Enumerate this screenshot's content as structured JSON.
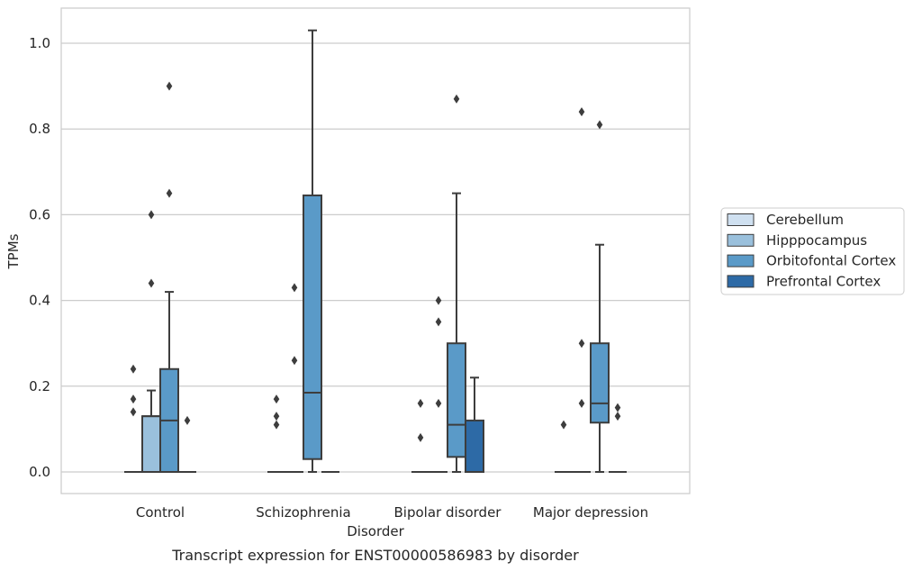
{
  "chart_data": {
    "type": "box",
    "caption": "Transcript expression for ENST00000586983 by disorder",
    "xlabel": "Disorder",
    "ylabel": "TPMs",
    "ylim": [
      -0.05,
      1.08
    ],
    "yticks": [
      "0.0",
      "0.2",
      "0.4",
      "0.6",
      "0.8",
      "1.0"
    ],
    "grid": true,
    "legend_position": "right",
    "categories": [
      "Control",
      "Schizophrenia",
      "Bipolar disorder",
      "Major depression"
    ],
    "series": [
      {
        "name": "Cerebellum",
        "color": "#cfe0f0",
        "boxes": [
          {
            "min": 0,
            "q1": 0,
            "median": 0,
            "q3": 0,
            "max": 0,
            "fliers": [
              0.14,
              0.17,
              0.24
            ]
          },
          {
            "min": 0,
            "q1": 0,
            "median": 0,
            "q3": 0,
            "max": 0,
            "fliers": [
              0.11,
              0.13,
              0.17
            ]
          },
          {
            "min": 0,
            "q1": 0,
            "median": 0,
            "q3": 0,
            "max": 0,
            "fliers": [
              0.08,
              0.16
            ]
          },
          {
            "min": 0,
            "q1": 0,
            "median": 0,
            "q3": 0,
            "max": 0,
            "fliers": [
              0.11
            ]
          }
        ]
      },
      {
        "name": "Hipppocampus",
        "color": "#9ac0dc",
        "boxes": [
          {
            "min": 0,
            "q1": 0,
            "median": 0.13,
            "q3": 0.13,
            "max": 0.19,
            "fliers": [
              0.44,
              0.6
            ]
          },
          {
            "min": 0,
            "q1": 0,
            "median": 0,
            "q3": 0,
            "max": 0,
            "fliers": [
              0.26,
              0.43
            ]
          },
          {
            "min": 0,
            "q1": 0,
            "median": 0,
            "q3": 0,
            "max": 0,
            "fliers": [
              0.16,
              0.35,
              0.4
            ]
          },
          {
            "min": 0,
            "q1": 0,
            "median": 0,
            "q3": 0,
            "max": 0,
            "fliers": [
              0.16,
              0.3,
              0.84
            ]
          }
        ]
      },
      {
        "name": "Orbitofontal Cortex",
        "color": "#5a9ac8",
        "boxes": [
          {
            "min": 0,
            "q1": 0,
            "median": 0.12,
            "q3": 0.24,
            "max": 0.42,
            "fliers": [
              0.65,
              0.9
            ]
          },
          {
            "min": 0,
            "q1": 0.03,
            "median": 0.185,
            "q3": 0.645,
            "max": 1.03,
            "fliers": []
          },
          {
            "min": 0,
            "q1": 0.035,
            "median": 0.11,
            "q3": 0.3,
            "max": 0.65,
            "fliers": [
              0.87
            ]
          },
          {
            "min": 0,
            "q1": 0.115,
            "median": 0.16,
            "q3": 0.3,
            "max": 0.53,
            "fliers": [
              0.81
            ]
          }
        ]
      },
      {
        "name": "Prefrontal Cortex",
        "color": "#2d6aa6",
        "boxes": [
          {
            "min": 0,
            "q1": 0,
            "median": 0,
            "q3": 0,
            "max": 0,
            "fliers": [
              0.12
            ]
          },
          {
            "min": 0,
            "q1": 0,
            "median": 0,
            "q3": 0,
            "max": 0,
            "fliers": []
          },
          {
            "min": 0,
            "q1": 0,
            "median": 0,
            "q3": 0.12,
            "max": 0.22,
            "fliers": []
          },
          {
            "min": 0,
            "q1": 0,
            "median": 0,
            "q3": 0,
            "max": 0,
            "fliers": [
              0.13,
              0.15
            ]
          }
        ]
      }
    ]
  }
}
